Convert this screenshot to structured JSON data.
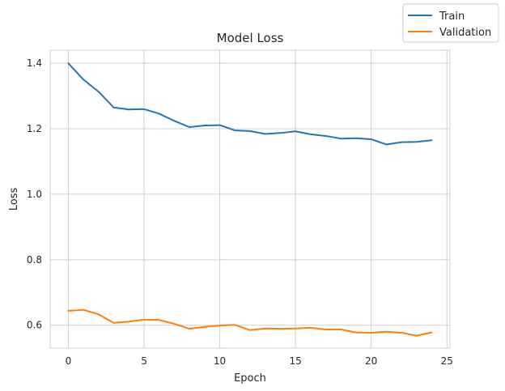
{
  "chart_data": {
    "type": "line",
    "title": "Model Loss",
    "xlabel": "Epoch",
    "ylabel": "Loss",
    "xlim": [
      -1.2,
      25.2
    ],
    "ylim": [
      0.53,
      1.44
    ],
    "xticks": [
      0,
      5,
      10,
      15,
      20,
      25
    ],
    "yticks": [
      0.6,
      0.8,
      1.0,
      1.2,
      1.4
    ],
    "xtick_labels": [
      "0",
      "5",
      "10",
      "15",
      "20",
      "25"
    ],
    "ytick_labels": [
      "0.6",
      "0.8",
      "1.0",
      "1.2",
      "1.4"
    ],
    "grid": true,
    "legend_placement": "top-right, outside plot",
    "x": [
      0,
      1,
      2,
      3,
      4,
      5,
      6,
      7,
      8,
      9,
      10,
      11,
      12,
      13,
      14,
      15,
      16,
      17,
      18,
      19,
      20,
      21,
      22,
      23,
      24
    ],
    "series": [
      {
        "name": "Train",
        "color": "#1f77b4",
        "values": [
          1.4,
          1.35,
          1.313,
          1.265,
          1.259,
          1.26,
          1.246,
          1.224,
          1.205,
          1.21,
          1.211,
          1.195,
          1.193,
          1.184,
          1.187,
          1.192,
          1.183,
          1.178,
          1.17,
          1.171,
          1.168,
          1.152,
          1.159,
          1.16,
          1.165
        ]
      },
      {
        "name": "Validation",
        "color": "#ff7f0e",
        "values": [
          0.644,
          0.647,
          0.633,
          0.607,
          0.611,
          0.617,
          0.616,
          0.604,
          0.589,
          0.595,
          0.599,
          0.601,
          0.585,
          0.59,
          0.589,
          0.59,
          0.592,
          0.587,
          0.587,
          0.578,
          0.577,
          0.58,
          0.577,
          0.568,
          0.578
        ]
      }
    ]
  }
}
